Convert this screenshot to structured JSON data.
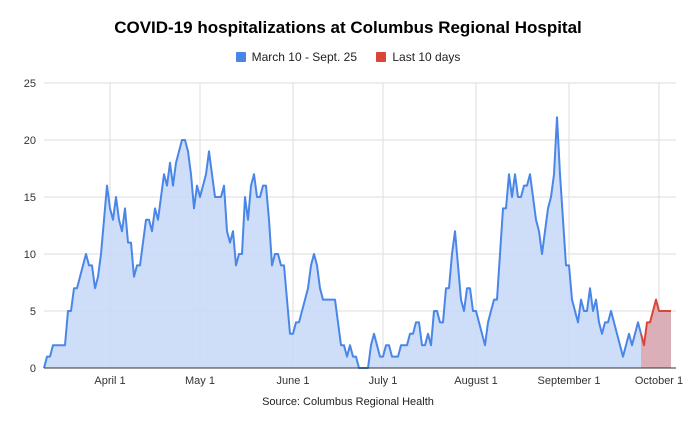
{
  "chart_data": {
    "type": "area",
    "title": "COVID-19 hospitalizations at Columbus Regional Hospital",
    "source": "Source: Columbus Regional Health",
    "x_range": [
      "Mar 10",
      "Oct 5"
    ],
    "ylim": [
      0,
      25
    ],
    "yticks": [
      "0",
      "5",
      "10",
      "15",
      "20",
      "25"
    ],
    "xticks": [
      {
        "label": "April 1",
        "day": 22
      },
      {
        "label": "May 1",
        "day": 52
      },
      {
        "label": "June 1",
        "day": 83
      },
      {
        "label": "July 1",
        "day": 113
      },
      {
        "label": "August 1",
        "day": 144
      },
      {
        "label": "September 1",
        "day": 175
      },
      {
        "label": "October 1",
        "day": 205
      }
    ],
    "grid": true,
    "legend_position": "top",
    "series": [
      {
        "name": "March 10 - Sept. 25",
        "color": "#4a86e8",
        "fill": "#c9daf8",
        "start_day": 0,
        "values": [
          0,
          1,
          1,
          2,
          2,
          2,
          2,
          2,
          5,
          5,
          7,
          7,
          8,
          9,
          10,
          9,
          9,
          7,
          8,
          10,
          13,
          16,
          14,
          13,
          15,
          13,
          12,
          14,
          11,
          11,
          8,
          9,
          9,
          11,
          13,
          13,
          12,
          14,
          13,
          15,
          17,
          16,
          18,
          16,
          18,
          19,
          20,
          20,
          19,
          17,
          14,
          16,
          15,
          16,
          17,
          19,
          17,
          15,
          15,
          15,
          16,
          12,
          11,
          12,
          9,
          10,
          10,
          15,
          13,
          16,
          17,
          15,
          15,
          16,
          16,
          13,
          9,
          10,
          10,
          9,
          9,
          6,
          3,
          3,
          4,
          4,
          5,
          6,
          7,
          9,
          10,
          9,
          7,
          6,
          6,
          6,
          6,
          6,
          4,
          2,
          2,
          1,
          2,
          1,
          1,
          0,
          0,
          0,
          0,
          2,
          3,
          2,
          1,
          1,
          2,
          2,
          1,
          1,
          1,
          2,
          2,
          2,
          3,
          3,
          4,
          4,
          2,
          2,
          3,
          2,
          5,
          5,
          4,
          4,
          7,
          7,
          10,
          12,
          9,
          6,
          5,
          7,
          7,
          5,
          5,
          4,
          3,
          2,
          4,
          5,
          6,
          6,
          10,
          14,
          14,
          17,
          15,
          17,
          15,
          15,
          16,
          16,
          17,
          15,
          13,
          12,
          10,
          12,
          14,
          15,
          17,
          22,
          17,
          13,
          9,
          9,
          6,
          5,
          4,
          6,
          5,
          5,
          7,
          5,
          6,
          4,
          3,
          4,
          4,
          5,
          4,
          3,
          2,
          1,
          2,
          3,
          2,
          3,
          4,
          3
        ]
      },
      {
        "name": "Last 10 days",
        "color": "#db4437",
        "fill": "#d8a6b0",
        "start_day": 200,
        "values": [
          2,
          4,
          4,
          5,
          6,
          5,
          5,
          5,
          5,
          5
        ]
      }
    ]
  }
}
